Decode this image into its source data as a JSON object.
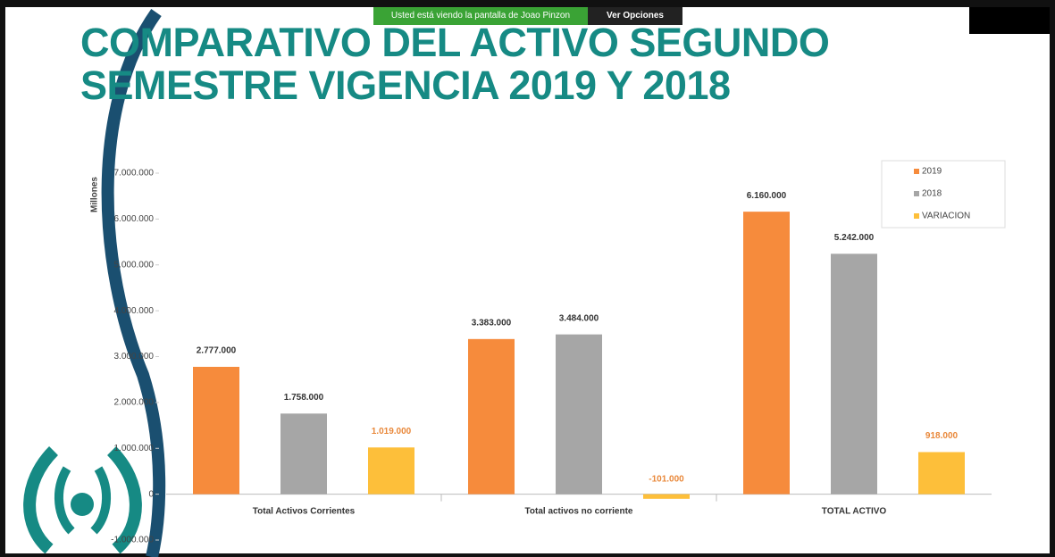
{
  "ui": {
    "banner": "Usted está viendo la pantalla de Joao Pinzon",
    "options": "Ver Opciones"
  },
  "chart_data": {
    "type": "bar",
    "title": "COMPARATIVO DEL ACTIVO SEGUNDO SEMESTRE VIGENCIA 2019 Y 2018",
    "ylabel": "Millones",
    "categories": [
      "Total Activos Corrientes",
      "Total activos no corriente",
      "TOTAL ACTIVO"
    ],
    "series": [
      {
        "name": "2019",
        "color": "#f68b3c",
        "values": [
          2777000,
          3383000,
          6160000
        ],
        "value_labels": [
          "2.777.000",
          "3.383.000",
          "6.160.000"
        ]
      },
      {
        "name": "2018",
        "color": "#a6a6a6",
        "values": [
          1758000,
          3484000,
          5242000
        ],
        "value_labels": [
          "1.758.000",
          "3.484.000",
          "5.242.000"
        ]
      },
      {
        "name": "VARIACION",
        "color": "#fdbf3a",
        "values": [
          1019000,
          -101000,
          918000
        ],
        "value_labels": [
          "1.019.000",
          "-101.000",
          "918.000"
        ]
      }
    ],
    "ylim": [
      -1000000,
      7000000
    ],
    "yticks": [
      {
        "value": -1000000,
        "label": "-1.000.000"
      },
      0,
      {
        "value": 1000000,
        "label": "1.000.000"
      },
      {
        "value": 2000000,
        "label": "2.000.000"
      },
      {
        "value": 3000000,
        "label": "3.000.000"
      },
      {
        "value": 4000000,
        "label": "4.000.000"
      },
      {
        "value": 5000000,
        "label": "5.000.000"
      },
      {
        "value": 6000000,
        "label": "6.000.000"
      },
      {
        "value": 7000000,
        "label": "7.000.000"
      }
    ],
    "legend": "top-right",
    "grid": false
  }
}
